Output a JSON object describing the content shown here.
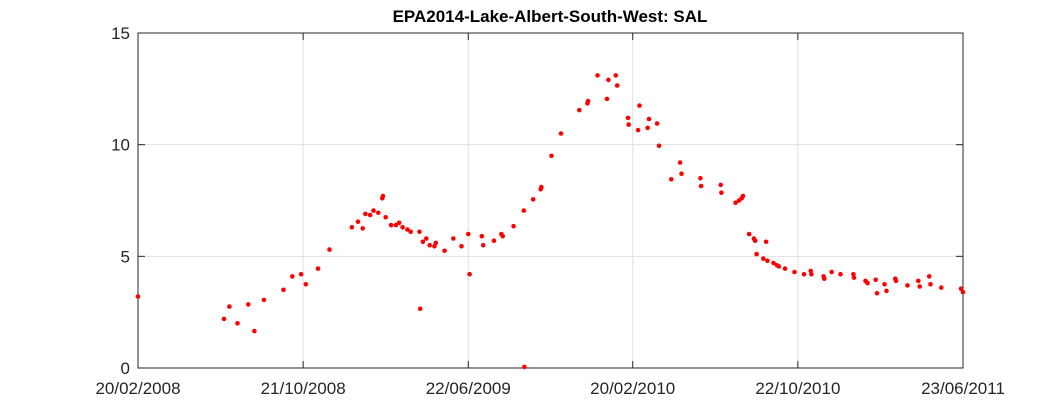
{
  "chart_data": {
    "type": "scatter",
    "title": "EPA2014-Lake-Albert-South-West: SAL",
    "xlabel": "",
    "ylabel": "",
    "x_axis": {
      "type": "date",
      "range": [
        "2008-02-20",
        "2011-06-23"
      ],
      "ticks": [
        {
          "date": "2008-02-20",
          "label": "20/02/2008"
        },
        {
          "date": "2008-10-21",
          "label": "21/10/2008"
        },
        {
          "date": "2009-06-22",
          "label": "22/06/2009"
        },
        {
          "date": "2010-02-20",
          "label": "20/02/2010"
        },
        {
          "date": "2010-10-22",
          "label": "22/10/2010"
        },
        {
          "date": "2011-06-23",
          "label": "23/06/2011"
        }
      ]
    },
    "y_axis": {
      "range": [
        0,
        15
      ],
      "ticks": [
        0,
        5,
        10,
        15
      ]
    },
    "grid": true,
    "marker_color": "#ff0000",
    "points": [
      [
        "2008-02-20",
        3.2
      ],
      [
        "2008-06-26",
        2.2
      ],
      [
        "2008-07-04",
        2.75
      ],
      [
        "2008-07-16",
        2.0
      ],
      [
        "2008-08-01",
        2.85
      ],
      [
        "2008-08-10",
        1.65
      ],
      [
        "2008-08-24",
        3.05
      ],
      [
        "2008-09-22",
        3.5
      ],
      [
        "2008-10-05",
        4.1
      ],
      [
        "2008-10-18",
        4.2
      ],
      [
        "2008-10-25",
        3.75
      ],
      [
        "2008-11-12",
        4.45
      ],
      [
        "2008-11-29",
        5.3
      ],
      [
        "2009-01-01",
        6.3
      ],
      [
        "2009-01-10",
        6.55
      ],
      [
        "2009-01-17",
        6.25
      ],
      [
        "2009-01-21",
        6.9
      ],
      [
        "2009-01-28",
        6.85
      ],
      [
        "2009-02-02",
        7.05
      ],
      [
        "2009-02-09",
        6.95
      ],
      [
        "2009-02-15",
        7.6
      ],
      [
        "2009-02-16",
        7.7
      ],
      [
        "2009-02-20",
        6.75
      ],
      [
        "2009-02-28",
        6.4
      ],
      [
        "2009-03-07",
        6.4
      ],
      [
        "2009-03-12",
        6.5
      ],
      [
        "2009-03-17",
        6.3
      ],
      [
        "2009-03-24",
        6.2
      ],
      [
        "2009-03-29",
        6.1
      ],
      [
        "2009-04-11",
        6.1
      ],
      [
        "2009-04-12",
        2.65
      ],
      [
        "2009-04-16",
        5.65
      ],
      [
        "2009-04-21",
        5.8
      ],
      [
        "2009-04-26",
        5.5
      ],
      [
        "2009-05-03",
        5.45
      ],
      [
        "2009-05-05",
        5.6
      ],
      [
        "2009-05-18",
        5.25
      ],
      [
        "2009-05-31",
        5.8
      ],
      [
        "2009-06-12",
        5.45
      ],
      [
        "2009-06-22",
        6.0
      ],
      [
        "2009-06-24",
        4.2
      ],
      [
        "2009-07-12",
        5.9
      ],
      [
        "2009-07-14",
        5.5
      ],
      [
        "2009-07-30",
        5.7
      ],
      [
        "2009-08-10",
        6.0
      ],
      [
        "2009-08-12",
        5.9
      ],
      [
        "2009-08-28",
        6.35
      ],
      [
        "2009-09-12",
        7.05
      ],
      [
        "2009-09-13",
        0.05
      ],
      [
        "2009-09-26",
        7.55
      ],
      [
        "2009-10-07",
        8.0
      ],
      [
        "2009-10-08",
        8.1
      ],
      [
        "2009-10-23",
        9.5
      ],
      [
        "2009-11-06",
        10.5
      ],
      [
        "2009-12-03",
        11.55
      ],
      [
        "2009-12-15",
        11.85
      ],
      [
        "2009-12-16",
        11.95
      ],
      [
        "2009-12-30",
        13.1
      ],
      [
        "2010-01-13",
        12.05
      ],
      [
        "2010-01-15",
        12.9
      ],
      [
        "2010-01-26",
        13.1
      ],
      [
        "2010-01-28",
        12.65
      ],
      [
        "2010-02-13",
        11.2
      ],
      [
        "2010-02-14",
        10.9
      ],
      [
        "2010-02-28",
        10.65
      ],
      [
        "2010-03-02",
        11.75
      ],
      [
        "2010-03-14",
        10.75
      ],
      [
        "2010-03-16",
        11.15
      ],
      [
        "2010-03-28",
        10.95
      ],
      [
        "2010-03-31",
        9.95
      ],
      [
        "2010-04-18",
        8.45
      ],
      [
        "2010-05-01",
        9.2
      ],
      [
        "2010-05-03",
        8.7
      ],
      [
        "2010-05-31",
        8.5
      ],
      [
        "2010-06-01",
        8.15
      ],
      [
        "2010-06-30",
        8.2
      ],
      [
        "2010-07-01",
        7.85
      ],
      [
        "2010-07-22",
        7.4
      ],
      [
        "2010-07-27",
        7.5
      ],
      [
        "2010-07-31",
        7.6
      ],
      [
        "2010-08-02",
        7.7
      ],
      [
        "2010-08-11",
        6.0
      ],
      [
        "2010-08-18",
        5.8
      ],
      [
        "2010-08-20",
        5.7
      ],
      [
        "2010-08-22",
        5.1
      ],
      [
        "2010-09-05",
        5.65
      ],
      [
        "2010-09-01",
        4.9
      ],
      [
        "2010-09-07",
        4.8
      ],
      [
        "2010-09-16",
        4.7
      ],
      [
        "2010-09-21",
        4.6
      ],
      [
        "2010-09-24",
        4.55
      ],
      [
        "2010-10-03",
        4.45
      ],
      [
        "2010-10-17",
        4.3
      ],
      [
        "2010-10-31",
        4.2
      ],
      [
        "2010-11-10",
        4.35
      ],
      [
        "2010-11-11",
        4.2
      ],
      [
        "2010-11-29",
        4.1
      ],
      [
        "2010-11-30",
        4.0
      ],
      [
        "2010-12-11",
        4.3
      ],
      [
        "2010-12-24",
        4.2
      ],
      [
        "2011-01-12",
        4.2
      ],
      [
        "2011-01-13",
        4.05
      ],
      [
        "2011-01-30",
        3.9
      ],
      [
        "2011-02-02",
        3.8
      ],
      [
        "2011-02-14",
        3.95
      ],
      [
        "2011-02-16",
        3.35
      ],
      [
        "2011-02-27",
        3.75
      ],
      [
        "2011-03-02",
        3.45
      ],
      [
        "2011-03-15",
        4.0
      ],
      [
        "2011-03-16",
        3.9
      ],
      [
        "2011-04-02",
        3.7
      ],
      [
        "2011-04-18",
        3.9
      ],
      [
        "2011-04-20",
        3.65
      ],
      [
        "2011-05-04",
        4.1
      ],
      [
        "2011-05-06",
        3.75
      ],
      [
        "2011-05-22",
        3.6
      ],
      [
        "2011-06-20",
        3.55
      ],
      [
        "2011-06-23",
        3.4
      ]
    ]
  }
}
